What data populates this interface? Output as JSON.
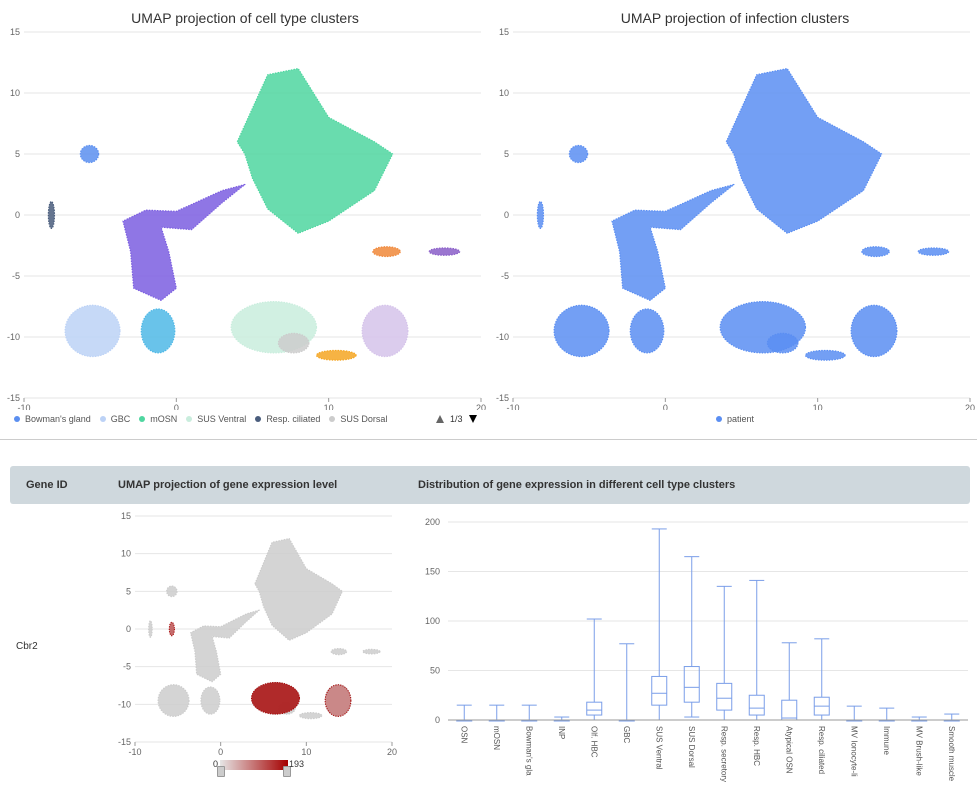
{
  "top": {
    "left_title": "UMAP projection of cell type clusters",
    "right_title": "UMAP projection of infection clusters",
    "left_legend": [
      {
        "label": "Bowman's gland",
        "color": "#5b8ff0"
      },
      {
        "label": "GBC",
        "color": "#bcd2f6"
      },
      {
        "label": "mOSN",
        "color": "#4fd6a0"
      },
      {
        "label": "SUS Ventral",
        "color": "#c9eddd"
      },
      {
        "label": "Resp. ciliated",
        "color": "#4a5d7d"
      },
      {
        "label": "SUS Dorsal",
        "color": "#cccccc"
      }
    ],
    "pager_text": "1/3",
    "right_legend": [
      {
        "label": "patient",
        "color": "#5a8ef2"
      }
    ]
  },
  "bottom": {
    "header": {
      "gene_id": "Gene ID",
      "umap": "UMAP projection of gene expression level",
      "distribution": "Distribution of gene expression in different cell type clusters"
    },
    "gene": "Cbr2",
    "scale": {
      "min": "0",
      "max": "193",
      "low_color": "#e6e6e6",
      "high_color": "#a50000"
    }
  },
  "chart_data": [
    {
      "type": "scatter",
      "title": "UMAP projection of cell type clusters",
      "xlim": [
        -10,
        20
      ],
      "ylim": [
        -15,
        15
      ],
      "xticks": [
        -10,
        0,
        10,
        20
      ],
      "yticks": [
        -15,
        -10,
        -5,
        0,
        5,
        10,
        15
      ],
      "clusters": [
        {
          "name": "mOSN",
          "color": "#4fd6a0",
          "shape": "poly",
          "points": [
            [
              4,
              6
            ],
            [
              6,
              11.5
            ],
            [
              8,
              12
            ],
            [
              10,
              8
            ],
            [
              13,
              6
            ],
            [
              14.2,
              5
            ],
            [
              13,
              2
            ],
            [
              10,
              -0.5
            ],
            [
              8,
              -1.5
            ],
            [
              6,
              0.5
            ],
            [
              5,
              3
            ],
            [
              4.5,
              5
            ]
          ]
        },
        {
          "name": "Bowman's gland",
          "color": "#5b8ff0",
          "shape": "blob",
          "cx": -5.7,
          "cy": 5,
          "rx": 0.6,
          "ry": 0.7
        },
        {
          "name": "Resp. ciliated",
          "color": "#4a5d7d",
          "shape": "blob",
          "cx": -8.2,
          "cy": 0,
          "rx": 0.2,
          "ry": 1.1
        },
        {
          "name": "GBC",
          "color": "#bcd2f6",
          "shape": "blob",
          "cx": -5.5,
          "cy": -9.5,
          "rx": 1.8,
          "ry": 2.1
        },
        {
          "name": "SUS Ventral",
          "color": "#c9eddd",
          "shape": "blob",
          "cx": 6.4,
          "cy": -9.2,
          "rx": 2.8,
          "ry": 2.1
        },
        {
          "name": "SUS Dorsal",
          "color": "#cccccc",
          "shape": "blob",
          "cx": 7.7,
          "cy": -10.5,
          "rx": 1,
          "ry": 0.8
        },
        {
          "name": "INP",
          "color": "#7b5ee0",
          "shape": "poly",
          "points": [
            [
              4.5,
              2.5
            ],
            [
              3,
              2
            ],
            [
              0,
              0.3
            ],
            [
              -2,
              0.4
            ],
            [
              -3.5,
              -0.5
            ],
            [
              -3,
              -3
            ],
            [
              -2.8,
              -6
            ],
            [
              -1,
              -7
            ],
            [
              0,
              -6
            ],
            [
              -0.5,
              -3
            ],
            [
              -1,
              -1
            ],
            [
              1,
              -1.2
            ],
            [
              3,
              1
            ],
            [
              4.5,
              2.5
            ]
          ]
        },
        {
          "name": "Olf. HBC",
          "color": "#4fb8e6",
          "shape": "blob",
          "cx": -1.2,
          "cy": -9.5,
          "rx": 1.1,
          "ry": 1.8
        },
        {
          "name": "Resp. secretory",
          "color": "#f5a623",
          "shape": "blob",
          "cx": 10.5,
          "cy": -11.5,
          "rx": 1.3,
          "ry": 0.4
        },
        {
          "name": "Resp. HBC",
          "color": "#d5c3ea",
          "shape": "blob",
          "cx": 13.7,
          "cy": -9.5,
          "rx": 1.5,
          "ry": 2.1
        },
        {
          "name": "Immune",
          "color": "#f0883a",
          "shape": "blob",
          "cx": 13.8,
          "cy": -3,
          "rx": 0.9,
          "ry": 0.4
        },
        {
          "name": "Smooth muscle",
          "color": "#8a5ec8",
          "shape": "blob",
          "cx": 17.6,
          "cy": -3,
          "rx": 1,
          "ry": 0.3
        }
      ]
    },
    {
      "type": "scatter",
      "title": "UMAP projection of infection clusters",
      "xlim": [
        -10,
        20
      ],
      "ylim": [
        -15,
        15
      ],
      "xticks": [
        -10,
        0,
        10,
        20
      ],
      "yticks": [
        -15,
        -10,
        -5,
        0,
        5,
        10,
        15
      ],
      "series": [
        {
          "name": "patient",
          "color": "#5a8ef2"
        }
      ]
    },
    {
      "type": "scatter",
      "title": "UMAP projection of gene expression level",
      "gene": "Cbr2",
      "xlim": [
        -10,
        20
      ],
      "ylim": [
        -15,
        15
      ],
      "xticks": [
        -10,
        0,
        10,
        20
      ],
      "yticks": [
        -15,
        -10,
        -5,
        0,
        5,
        10,
        15
      ],
      "color_scale": [
        0,
        193
      ],
      "high_expression_regions": [
        {
          "cx": 6.4,
          "cy": -9.2,
          "rx": 2.8,
          "ry": 2.1,
          "level": 0.9
        },
        {
          "cx": 13.7,
          "cy": -9.5,
          "rx": 1.5,
          "ry": 2.1,
          "level": 0.45
        },
        {
          "cx": -5.7,
          "cy": 0,
          "rx": 0.3,
          "ry": 0.9,
          "level": 0.6
        }
      ]
    },
    {
      "type": "box",
      "title": "Distribution of gene expression in different cell type clusters",
      "ylim": [
        0,
        200
      ],
      "yticks": [
        0,
        50,
        100,
        150,
        200
      ],
      "categories": [
        "OSN",
        "mOSN",
        "Bowman's gland",
        "INP",
        "Olf. HBC",
        "GBC",
        "SUS Ventral",
        "SUS Dorsal",
        "Resp. secretory",
        "Resp. HBC",
        "Atypical OSN",
        "Resp. ciliated",
        "MV Ionocyte-like",
        "Immune",
        "MV Brush-like",
        "Smooth muscle"
      ],
      "tick_labels": [
        "OSN",
        "mOSN",
        "Bowman's gla",
        "INP",
        "Olf. HBC",
        "GBC",
        "SUS Ventral",
        "SUS Dorsal",
        "Resp. secretory",
        "Resp. HBC",
        "Atypical OSN",
        "Resp. ciliated",
        "MV Ionocyte-li",
        "Immune",
        "MV Brush-like",
        "Smooth muscle"
      ],
      "boxes": [
        {
          "min": 0,
          "q1": 0,
          "median": 0,
          "q3": 0,
          "max": 15
        },
        {
          "min": 0,
          "q1": 0,
          "median": 0,
          "q3": 0,
          "max": 15
        },
        {
          "min": 0,
          "q1": 0,
          "median": 0,
          "q3": 0,
          "max": 15
        },
        {
          "min": 0,
          "q1": 0,
          "median": 0,
          "q3": 0,
          "max": 3
        },
        {
          "min": 0,
          "q1": 5,
          "median": 10,
          "q3": 18,
          "max": 102
        },
        {
          "min": 0,
          "q1": 0,
          "median": 0,
          "q3": 0,
          "max": 77
        },
        {
          "min": 0,
          "q1": 15,
          "median": 27,
          "q3": 44,
          "max": 193
        },
        {
          "min": 3,
          "q1": 18,
          "median": 33,
          "q3": 54,
          "max": 165
        },
        {
          "min": 0,
          "q1": 10,
          "median": 22,
          "q3": 37,
          "max": 135
        },
        {
          "min": 0,
          "q1": 5,
          "median": 12,
          "q3": 25,
          "max": 141
        },
        {
          "min": 0,
          "q1": 0,
          "median": 2,
          "q3": 20,
          "max": 78
        },
        {
          "min": 0,
          "q1": 5,
          "median": 14,
          "q3": 23,
          "max": 82
        },
        {
          "min": 0,
          "q1": 0,
          "median": 0,
          "q3": 0,
          "max": 14
        },
        {
          "min": 0,
          "q1": 0,
          "median": 0,
          "q3": 0,
          "max": 12
        },
        {
          "min": 0,
          "q1": 0,
          "median": 0,
          "q3": 0,
          "max": 3
        },
        {
          "min": 0,
          "q1": 0,
          "median": 0,
          "q3": 0,
          "max": 6
        }
      ]
    }
  ]
}
